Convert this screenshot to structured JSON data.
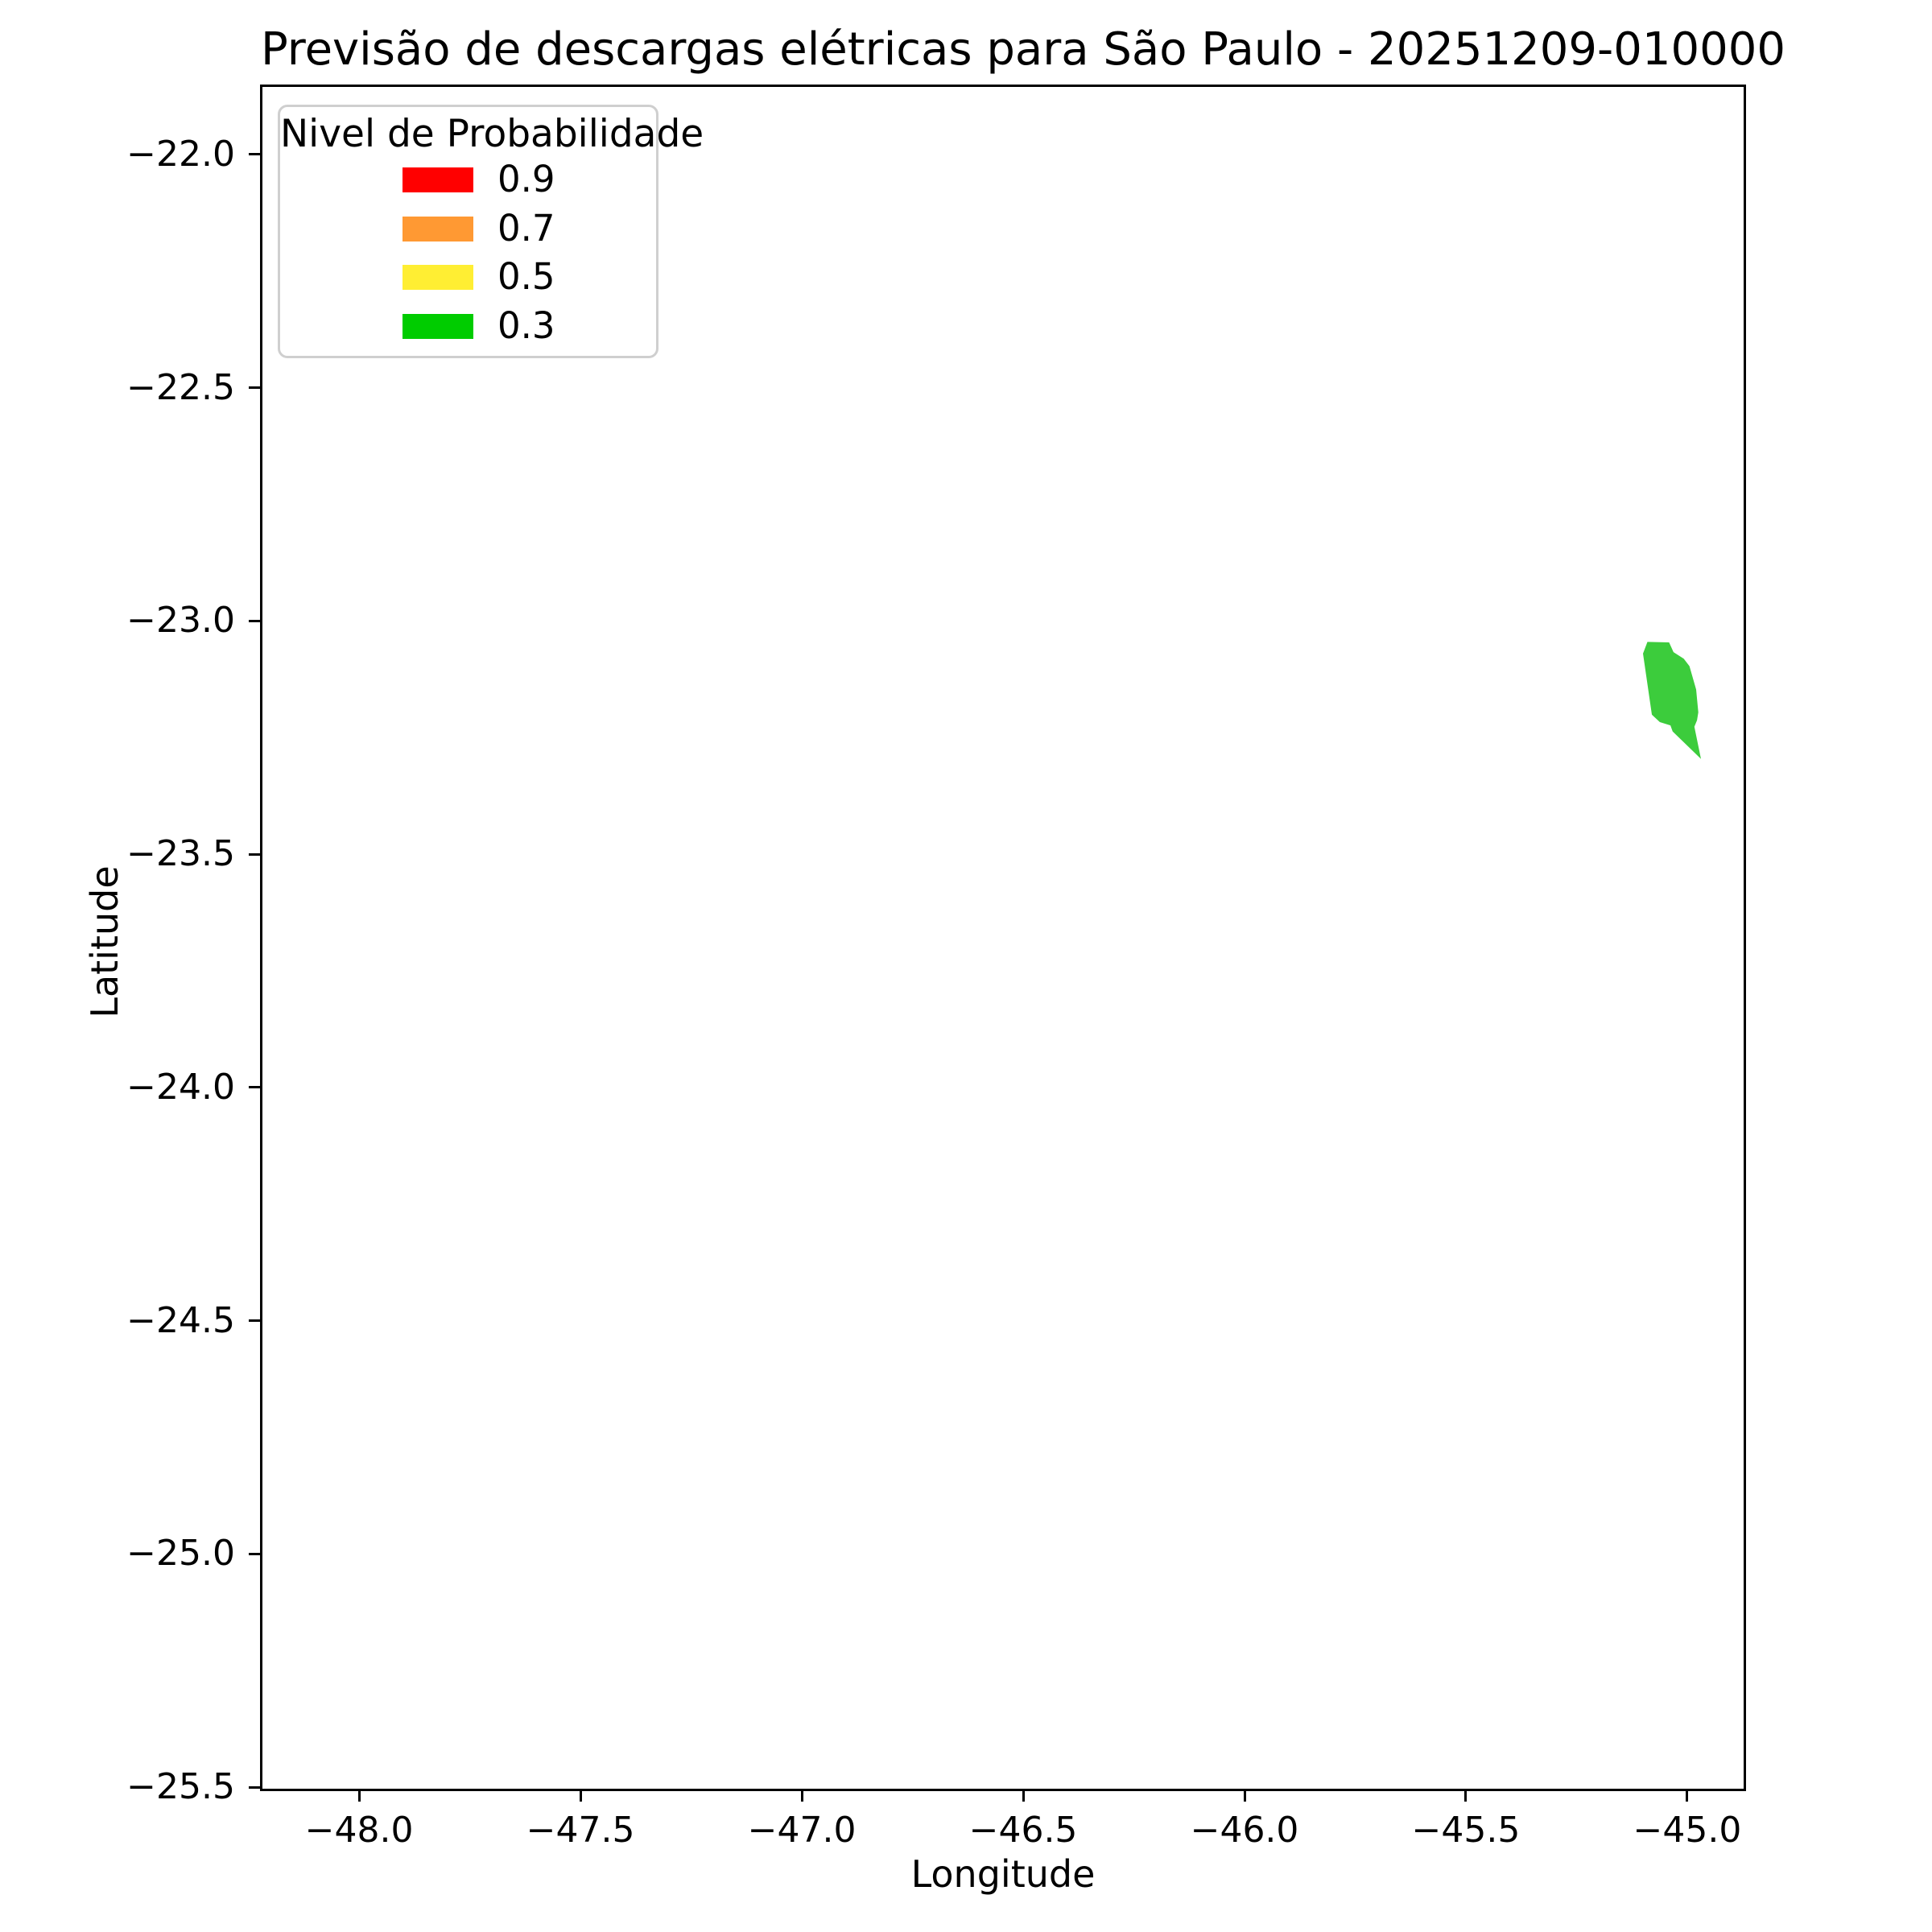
{
  "title": "Previsão de descargas elétricas para São Paulo - 20251209-010000",
  "axes": {
    "xlabel": "Longitude",
    "ylabel": "Latitude"
  },
  "legend": {
    "title": "Nivel de Probabilidade",
    "position": "upper left",
    "items": [
      {
        "label": "0.9",
        "color": "#ff0000"
      },
      {
        "label": "0.7",
        "color": "#ff9933"
      },
      {
        "label": "0.5",
        "color": "#ffee33"
      },
      {
        "label": "0.3",
        "color": "#00cc00"
      }
    ]
  },
  "chart_data": {
    "type": "area",
    "subtype": "filled-contour-map",
    "title": "Previsão de descargas elétricas para São Paulo - 20251209-010000",
    "xlabel": "Longitude",
    "ylabel": "Latitude",
    "xlim": [
      -48.222,
      -44.869
    ],
    "ylim": [
      -25.505,
      -21.852
    ],
    "x_ticks": [
      -48.0,
      -47.5,
      -47.0,
      -46.5,
      -46.0,
      -45.5,
      -45.0
    ],
    "y_ticks": [
      -22.0,
      -22.5,
      -23.0,
      -23.5,
      -24.0,
      -24.5,
      -25.0,
      -25.5
    ],
    "grid": false,
    "legend_position": "upper left",
    "series": [
      {
        "name": "probability-contour-0.3",
        "probability_level": 0.3,
        "color": "#3ccc3c",
        "polygon_lonlat": [
          [
            -45.09,
            -23.045
          ],
          [
            -45.041,
            -23.046
          ],
          [
            -45.031,
            -23.067
          ],
          [
            -45.008,
            -23.081
          ],
          [
            -44.995,
            -23.097
          ],
          [
            -44.98,
            -23.147
          ],
          [
            -44.975,
            -23.196
          ],
          [
            -44.978,
            -23.213
          ],
          [
            -44.984,
            -23.227
          ],
          [
            -44.969,
            -23.296
          ],
          [
            -45.033,
            -23.237
          ],
          [
            -45.038,
            -23.224
          ],
          [
            -45.062,
            -23.217
          ],
          [
            -45.08,
            -23.201
          ],
          [
            -45.1,
            -23.07
          ]
        ]
      }
    ]
  }
}
